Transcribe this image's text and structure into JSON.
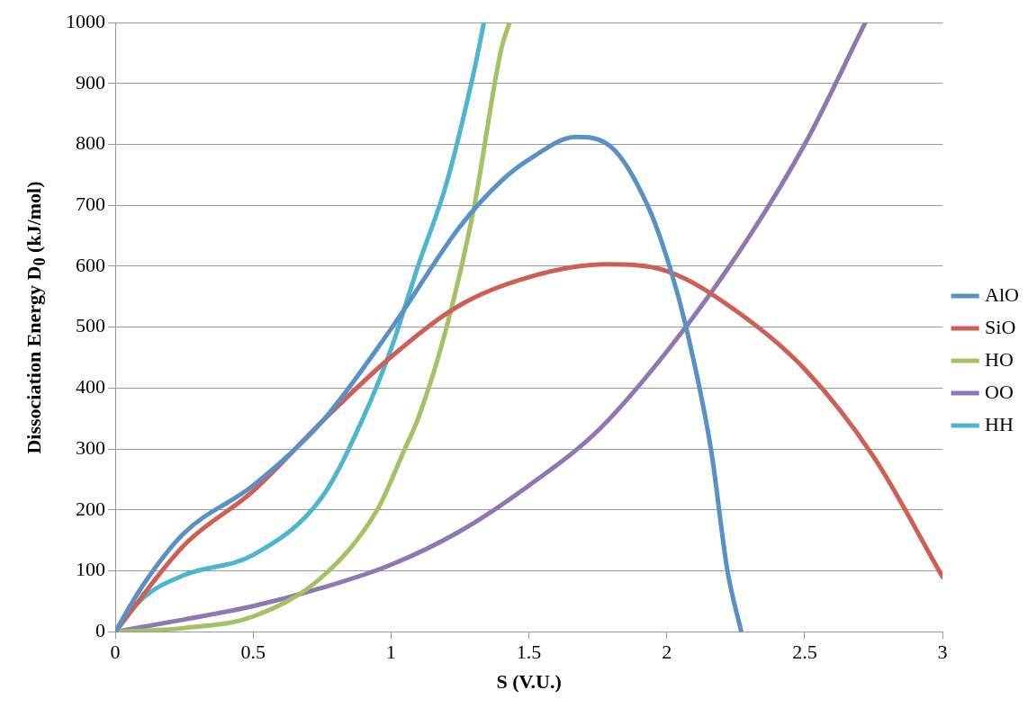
{
  "chart_data": {
    "type": "line",
    "xlabel": "S (V.U.)",
    "ylabel": "Dissociation Energy D$_{0}$ (kJ/mol)",
    "xlim": [
      0,
      3
    ],
    "xticks": [
      0,
      0.5,
      1,
      1.5,
      2,
      2.5,
      3
    ],
    "ylim": [
      0,
      1000
    ],
    "yticks": [
      0,
      100,
      200,
      300,
      400,
      500,
      600,
      700,
      800,
      900,
      1000
    ],
    "grid": "y",
    "legend": "right",
    "marker": "none",
    "line_style": "solid",
    "series": [
      {
        "name": "AlO",
        "color": "#5b8fc7",
        "x": [
          0,
          0.1,
          0.25,
          0.5,
          0.75,
          1,
          1.25,
          1.4,
          1.5,
          1.67,
          1.8,
          1.93,
          2.01,
          2.07,
          2.16,
          2.22,
          2.27
        ],
        "values": [
          0,
          76,
          162,
          240,
          345,
          497,
          665,
          740,
          775,
          812,
          795,
          700,
          600,
          500,
          300,
          100,
          0
        ]
      },
      {
        "name": "SiO",
        "color": "#cd5f55",
        "x": [
          0,
          0.25,
          0.5,
          0.75,
          1,
          1.25,
          1.5,
          1.78,
          2,
          2.25,
          2.5,
          2.75,
          3
        ],
        "values": [
          0,
          142,
          231,
          345,
          451,
          536,
          582,
          603,
          592,
          527,
          431,
          287,
          90
        ]
      },
      {
        "name": "HO",
        "color": "#a3c263",
        "x": [
          0,
          0.25,
          0.5,
          0.75,
          0.95,
          1.05,
          1.1,
          1.2,
          1.3,
          1.4,
          1.43
        ],
        "values": [
          0,
          6,
          25,
          90,
          200,
          300,
          352,
          497,
          694,
          957,
          1000
        ]
      },
      {
        "name": "OO",
        "color": "#8e78b3",
        "x": [
          0,
          0.25,
          0.5,
          0.75,
          1,
          1.25,
          1.5,
          1.75,
          2,
          2.25,
          2.5,
          2.72
        ],
        "values": [
          0,
          20,
          42,
          72,
          110,
          165,
          240,
          330,
          460,
          615,
          800,
          1000
        ]
      },
      {
        "name": "HH",
        "color": "#4db5ce",
        "x": [
          0,
          0.1,
          0.25,
          0.5,
          0.75,
          0.9,
          1,
          1.1,
          1.2,
          1.3,
          1.337
        ],
        "values": [
          0,
          55,
          93,
          126,
          221,
          352,
          464,
          603,
          734,
          918,
          1000
        ]
      }
    ]
  }
}
